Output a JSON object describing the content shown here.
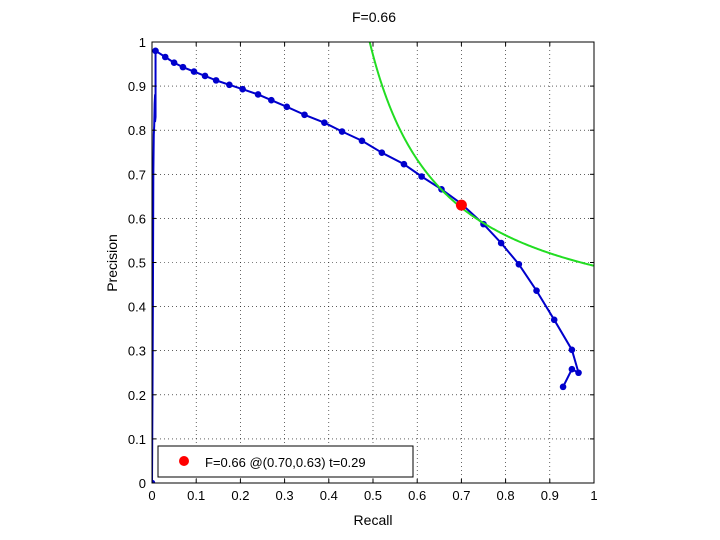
{
  "chart_data": {
    "type": "line",
    "title": "F=0.66",
    "xlabel": "Recall",
    "ylabel": "Precision",
    "xlim": [
      0,
      1
    ],
    "ylim": [
      0,
      1
    ],
    "grid": true,
    "grid_style": "dotted",
    "x_ticks": [
      "0",
      "0.1",
      "0.2",
      "0.3",
      "0.4",
      "0.5",
      "0.6",
      "0.7",
      "0.8",
      "0.9",
      "1"
    ],
    "y_ticks": [
      "0",
      "0.1",
      "0.2",
      "0.3",
      "0.4",
      "0.5",
      "0.6",
      "0.7",
      "0.8",
      "0.9",
      "1"
    ],
    "series": [
      {
        "color": "#0000cc",
        "points": [
          [
            0.0,
            0.0
          ],
          [
            0.001,
            0.18
          ],
          [
            0.002,
            0.4
          ],
          [
            0.003,
            0.7
          ],
          [
            0.004,
            0.79
          ],
          [
            0.005,
            0.81
          ],
          [
            0.006,
            0.86
          ],
          [
            0.007,
            0.88
          ],
          [
            0.007,
            0.82
          ],
          [
            0.008,
            0.83
          ],
          [
            0.008,
            0.98
          ],
          [
            0.03,
            0.966
          ],
          [
            0.05,
            0.953
          ],
          [
            0.07,
            0.943
          ],
          [
            0.095,
            0.933
          ],
          [
            0.12,
            0.923
          ],
          [
            0.145,
            0.913
          ],
          [
            0.175,
            0.903
          ],
          [
            0.205,
            0.893
          ],
          [
            0.24,
            0.881
          ],
          [
            0.27,
            0.868
          ],
          [
            0.305,
            0.853
          ],
          [
            0.345,
            0.835
          ],
          [
            0.39,
            0.817
          ],
          [
            0.43,
            0.797
          ],
          [
            0.475,
            0.776
          ],
          [
            0.52,
            0.749
          ],
          [
            0.57,
            0.723
          ],
          [
            0.61,
            0.695
          ],
          [
            0.655,
            0.666
          ],
          [
            0.7,
            0.633
          ],
          [
            0.75,
            0.587
          ],
          [
            0.79,
            0.544
          ],
          [
            0.83,
            0.496
          ],
          [
            0.87,
            0.436
          ],
          [
            0.91,
            0.37
          ],
          [
            0.95,
            0.302
          ],
          [
            0.965,
            0.25
          ],
          [
            0.95,
            0.258
          ],
          [
            0.93,
            0.218
          ]
        ],
        "marker_from_index": 10,
        "origin_marker": true
      },
      {
        "color": "#22dd22",
        "type": "iso-f-curve",
        "f": 0.66
      }
    ],
    "highlight_point": {
      "x": 0.7,
      "y": 0.63,
      "color": "#ff0000"
    },
    "legend": {
      "placement": "bottom-left",
      "entries": [
        {
          "label": "F=0.66 @(0.70,0.63) t=0.29",
          "marker_color": "#ff0000"
        }
      ]
    }
  }
}
